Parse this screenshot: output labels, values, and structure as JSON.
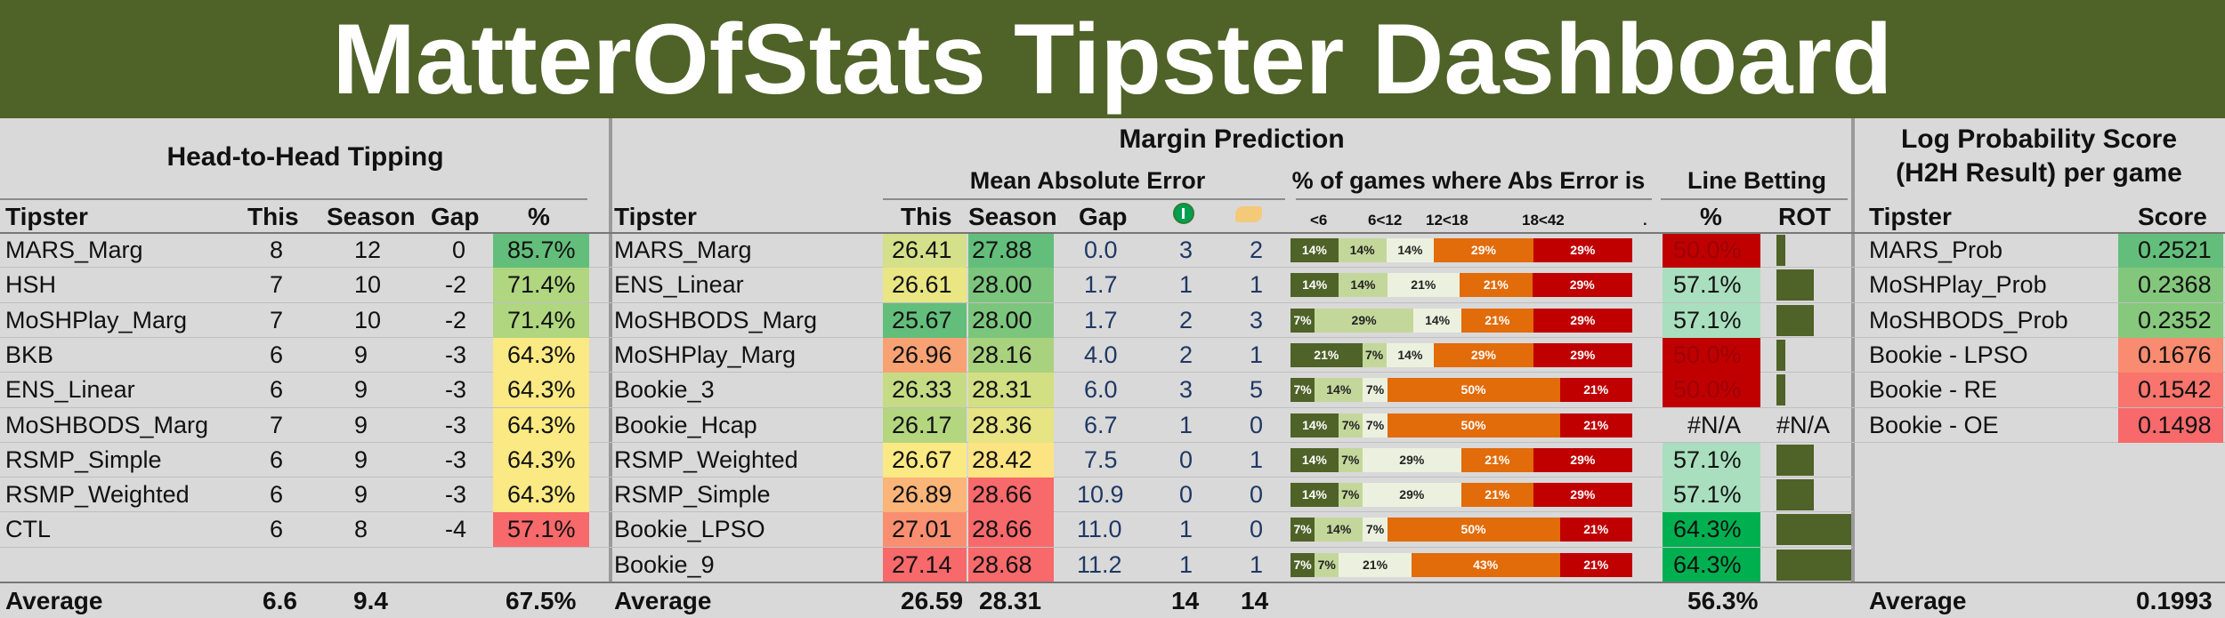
{
  "title": "MatterOfStats Tipster Dashboard",
  "h2h": {
    "heading": "Head-to-Head Tipping",
    "cols": [
      "Tipster",
      "This",
      "Season",
      "Gap",
      "%"
    ],
    "rows": [
      {
        "tipster": "MARS_Marg",
        "this": "8",
        "season": "12",
        "gap": "0",
        "pct": "85.7%",
        "color": "#63be7b"
      },
      {
        "tipster": "HSH",
        "this": "7",
        "season": "10",
        "gap": "-2",
        "pct": "71.4%",
        "color": "#b0d67f"
      },
      {
        "tipster": "MoSHPlay_Marg",
        "this": "7",
        "season": "10",
        "gap": "-2",
        "pct": "71.4%",
        "color": "#b0d67f"
      },
      {
        "tipster": "BKB",
        "this": "6",
        "season": "9",
        "gap": "-3",
        "pct": "64.3%",
        "color": "#fbe983"
      },
      {
        "tipster": "ENS_Linear",
        "this": "6",
        "season": "9",
        "gap": "-3",
        "pct": "64.3%",
        "color": "#fbe983"
      },
      {
        "tipster": "MoSHBODS_Marg",
        "this": "7",
        "season": "9",
        "gap": "-3",
        "pct": "64.3%",
        "color": "#fbe983"
      },
      {
        "tipster": "RSMP_Simple",
        "this": "6",
        "season": "9",
        "gap": "-3",
        "pct": "64.3%",
        "color": "#fbe983"
      },
      {
        "tipster": "RSMP_Weighted",
        "this": "6",
        "season": "9",
        "gap": "-3",
        "pct": "64.3%",
        "color": "#fbe983"
      },
      {
        "tipster": "CTL",
        "this": "6",
        "season": "8",
        "gap": "-4",
        "pct": "57.1%",
        "color": "#f8696b"
      }
    ],
    "average": {
      "label": "Average",
      "this": "6.6",
      "season": "9.4",
      "pct": "67.5%"
    }
  },
  "margin": {
    "heading": "Margin Prediction",
    "mae_heading": "Mean Absolute Error",
    "dist_heading": "% of games where Abs Error is",
    "line_heading": "Line Betting",
    "cols": [
      "Tipster",
      "This",
      "Season",
      "Gap"
    ],
    "icon1": "green-ball-icon",
    "icon2": "pointing-hand-icon",
    "dist_cols": [
      "<6",
      "6<12",
      "12<18",
      "18<42",
      "."
    ],
    "line_cols": [
      "%",
      "ROT"
    ],
    "rows": [
      {
        "tipster": "MARS_Marg",
        "this": "26.41",
        "season": "27.88",
        "gap": "0.0",
        "c1": "3",
        "c2": "2",
        "this_color": "#d4e08a",
        "season_color": "#63be7b",
        "dist": [
          14,
          14,
          14,
          29,
          29
        ],
        "lb": "50.0%",
        "lb_color": "#c00000",
        "rot": 0.12
      },
      {
        "tipster": "ENS_Linear",
        "this": "26.61",
        "season": "28.00",
        "gap": "1.7",
        "c1": "1",
        "c2": "1",
        "this_color": "#e9e683",
        "season_color": "#7cc57d",
        "dist": [
          14,
          14,
          21,
          21,
          29
        ],
        "lb": "57.1%",
        "lb_color": "#a9dfbf",
        "rot": 0.5
      },
      {
        "tipster": "MoSHBODS_Marg",
        "this": "25.67",
        "season": "28.00",
        "gap": "1.7",
        "c1": "2",
        "c2": "3",
        "this_color": "#63be7b",
        "season_color": "#7cc57d",
        "dist": [
          7,
          29,
          14,
          21,
          29
        ],
        "lb": "57.1%",
        "lb_color": "#a9dfbf",
        "rot": 0.5
      },
      {
        "tipster": "MoSHPlay_Marg",
        "this": "26.96",
        "season": "28.16",
        "gap": "4.0",
        "c1": "2",
        "c2": "1",
        "this_color": "#f8a273",
        "season_color": "#a9d27f",
        "dist": [
          21,
          7,
          14,
          29,
          29
        ],
        "lb": "50.0%",
        "lb_color": "#c00000",
        "rot": 0.12
      },
      {
        "tipster": "Bookie_3",
        "this": "26.33",
        "season": "28.31",
        "gap": "6.0",
        "c1": "3",
        "c2": "5",
        "this_color": "#c5dc85",
        "season_color": "#d2df82",
        "dist": [
          7,
          14,
          7,
          50,
          21
        ],
        "lb": "50.0%",
        "lb_color": "#c00000",
        "rot": 0.12
      },
      {
        "tipster": "Bookie_Hcap",
        "this": "26.17",
        "season": "28.36",
        "gap": "6.7",
        "c1": "1",
        "c2": "0",
        "this_color": "#b3d67f",
        "season_color": "#e6e483",
        "dist": [
          14,
          7,
          7,
          50,
          21
        ],
        "lb": "#N/A",
        "lb_color": "",
        "rot": 0
      },
      {
        "tipster": "RSMP_Weighted",
        "this": "26.67",
        "season": "28.42",
        "gap": "7.5",
        "c1": "0",
        "c2": "1",
        "this_color": "#fbe983",
        "season_color": "#fde482",
        "dist": [
          14,
          7,
          29,
          21,
          29
        ],
        "lb": "57.1%",
        "lb_color": "#a9dfbf",
        "rot": 0.5
      },
      {
        "tipster": "RSMP_Simple",
        "this": "26.89",
        "season": "28.66",
        "gap": "10.9",
        "c1": "0",
        "c2": "0",
        "this_color": "#fbb579",
        "season_color": "#f8696b",
        "dist": [
          14,
          7,
          29,
          21,
          29
        ],
        "lb": "57.1%",
        "lb_color": "#a9dfbf",
        "rot": 0.5
      },
      {
        "tipster": "Bookie_LPSO",
        "this": "27.01",
        "season": "28.66",
        "gap": "11.0",
        "c1": "1",
        "c2": "0",
        "this_color": "#f98f70",
        "season_color": "#f8696b",
        "dist": [
          7,
          14,
          7,
          50,
          21
        ],
        "lb": "64.3%",
        "lb_color": "#00b050",
        "rot": 1.0
      },
      {
        "tipster": "Bookie_9",
        "this": "27.14",
        "season": "28.68",
        "gap": "11.2",
        "c1": "1",
        "c2": "1",
        "this_color": "#f8696b",
        "season_color": "#f8696b",
        "dist": [
          7,
          7,
          21,
          43,
          21
        ],
        "lb": "64.3%",
        "lb_color": "#00b050",
        "rot": 1.0
      }
    ],
    "average": {
      "label": "Average",
      "this": "26.59",
      "season": "28.31",
      "c1": "14",
      "c2": "14",
      "lb": "56.3%"
    }
  },
  "logprob": {
    "heading1": "Log Probability Score",
    "heading2": "(H2H Result) per game",
    "cols": [
      "Tipster",
      "Score"
    ],
    "rows": [
      {
        "tipster": "MARS_Prob",
        "score": "0.2521",
        "color": "#63be7b"
      },
      {
        "tipster": "MoSHPlay_Prob",
        "score": "0.2368",
        "color": "#83c77c"
      },
      {
        "tipster": "MoSHBODS_Prob",
        "score": "0.2352",
        "color": "#86c87c"
      },
      {
        "tipster": "Bookie - LPSO",
        "score": "0.1676",
        "color": "#f98b70"
      },
      {
        "tipster": "Bookie - RE",
        "score": "0.1542",
        "color": "#f8746d"
      },
      {
        "tipster": "Bookie - OE",
        "score": "0.1498",
        "color": "#f8696b"
      }
    ],
    "average": {
      "label": "Average",
      "score": "0.1993"
    }
  },
  "dist_colors": [
    "#4f6228",
    "#c4d79b",
    "#ebf1de",
    "#e26b0a",
    "#c00000"
  ]
}
